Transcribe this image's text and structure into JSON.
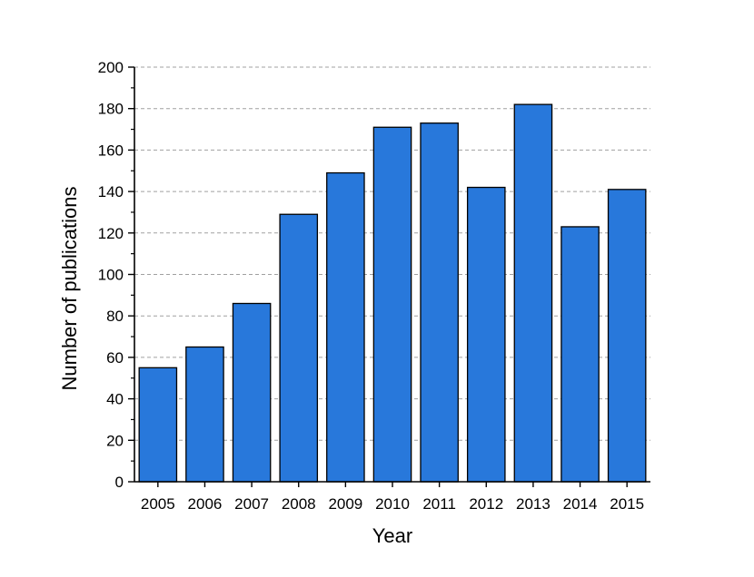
{
  "colors": {
    "bar_fill": "#2878DB",
    "bar_stroke": "#000000",
    "grid": "#A0A0A0",
    "axis": "#000000"
  },
  "chart_data": {
    "type": "bar",
    "title": "",
    "xlabel": "Year",
    "ylabel": "Number of publications",
    "categories": [
      "2005",
      "2006",
      "2007",
      "2008",
      "2009",
      "2010",
      "2011",
      "2012",
      "2013",
      "2014",
      "2015"
    ],
    "values": [
      55,
      65,
      86,
      129,
      149,
      171,
      173,
      142,
      182,
      123,
      141
    ],
    "ylim": [
      0,
      200
    ],
    "yticks": [
      0,
      20,
      40,
      60,
      80,
      100,
      120,
      140,
      160,
      180,
      200
    ],
    "grid": "horizontal dashed",
    "legend": "none"
  }
}
